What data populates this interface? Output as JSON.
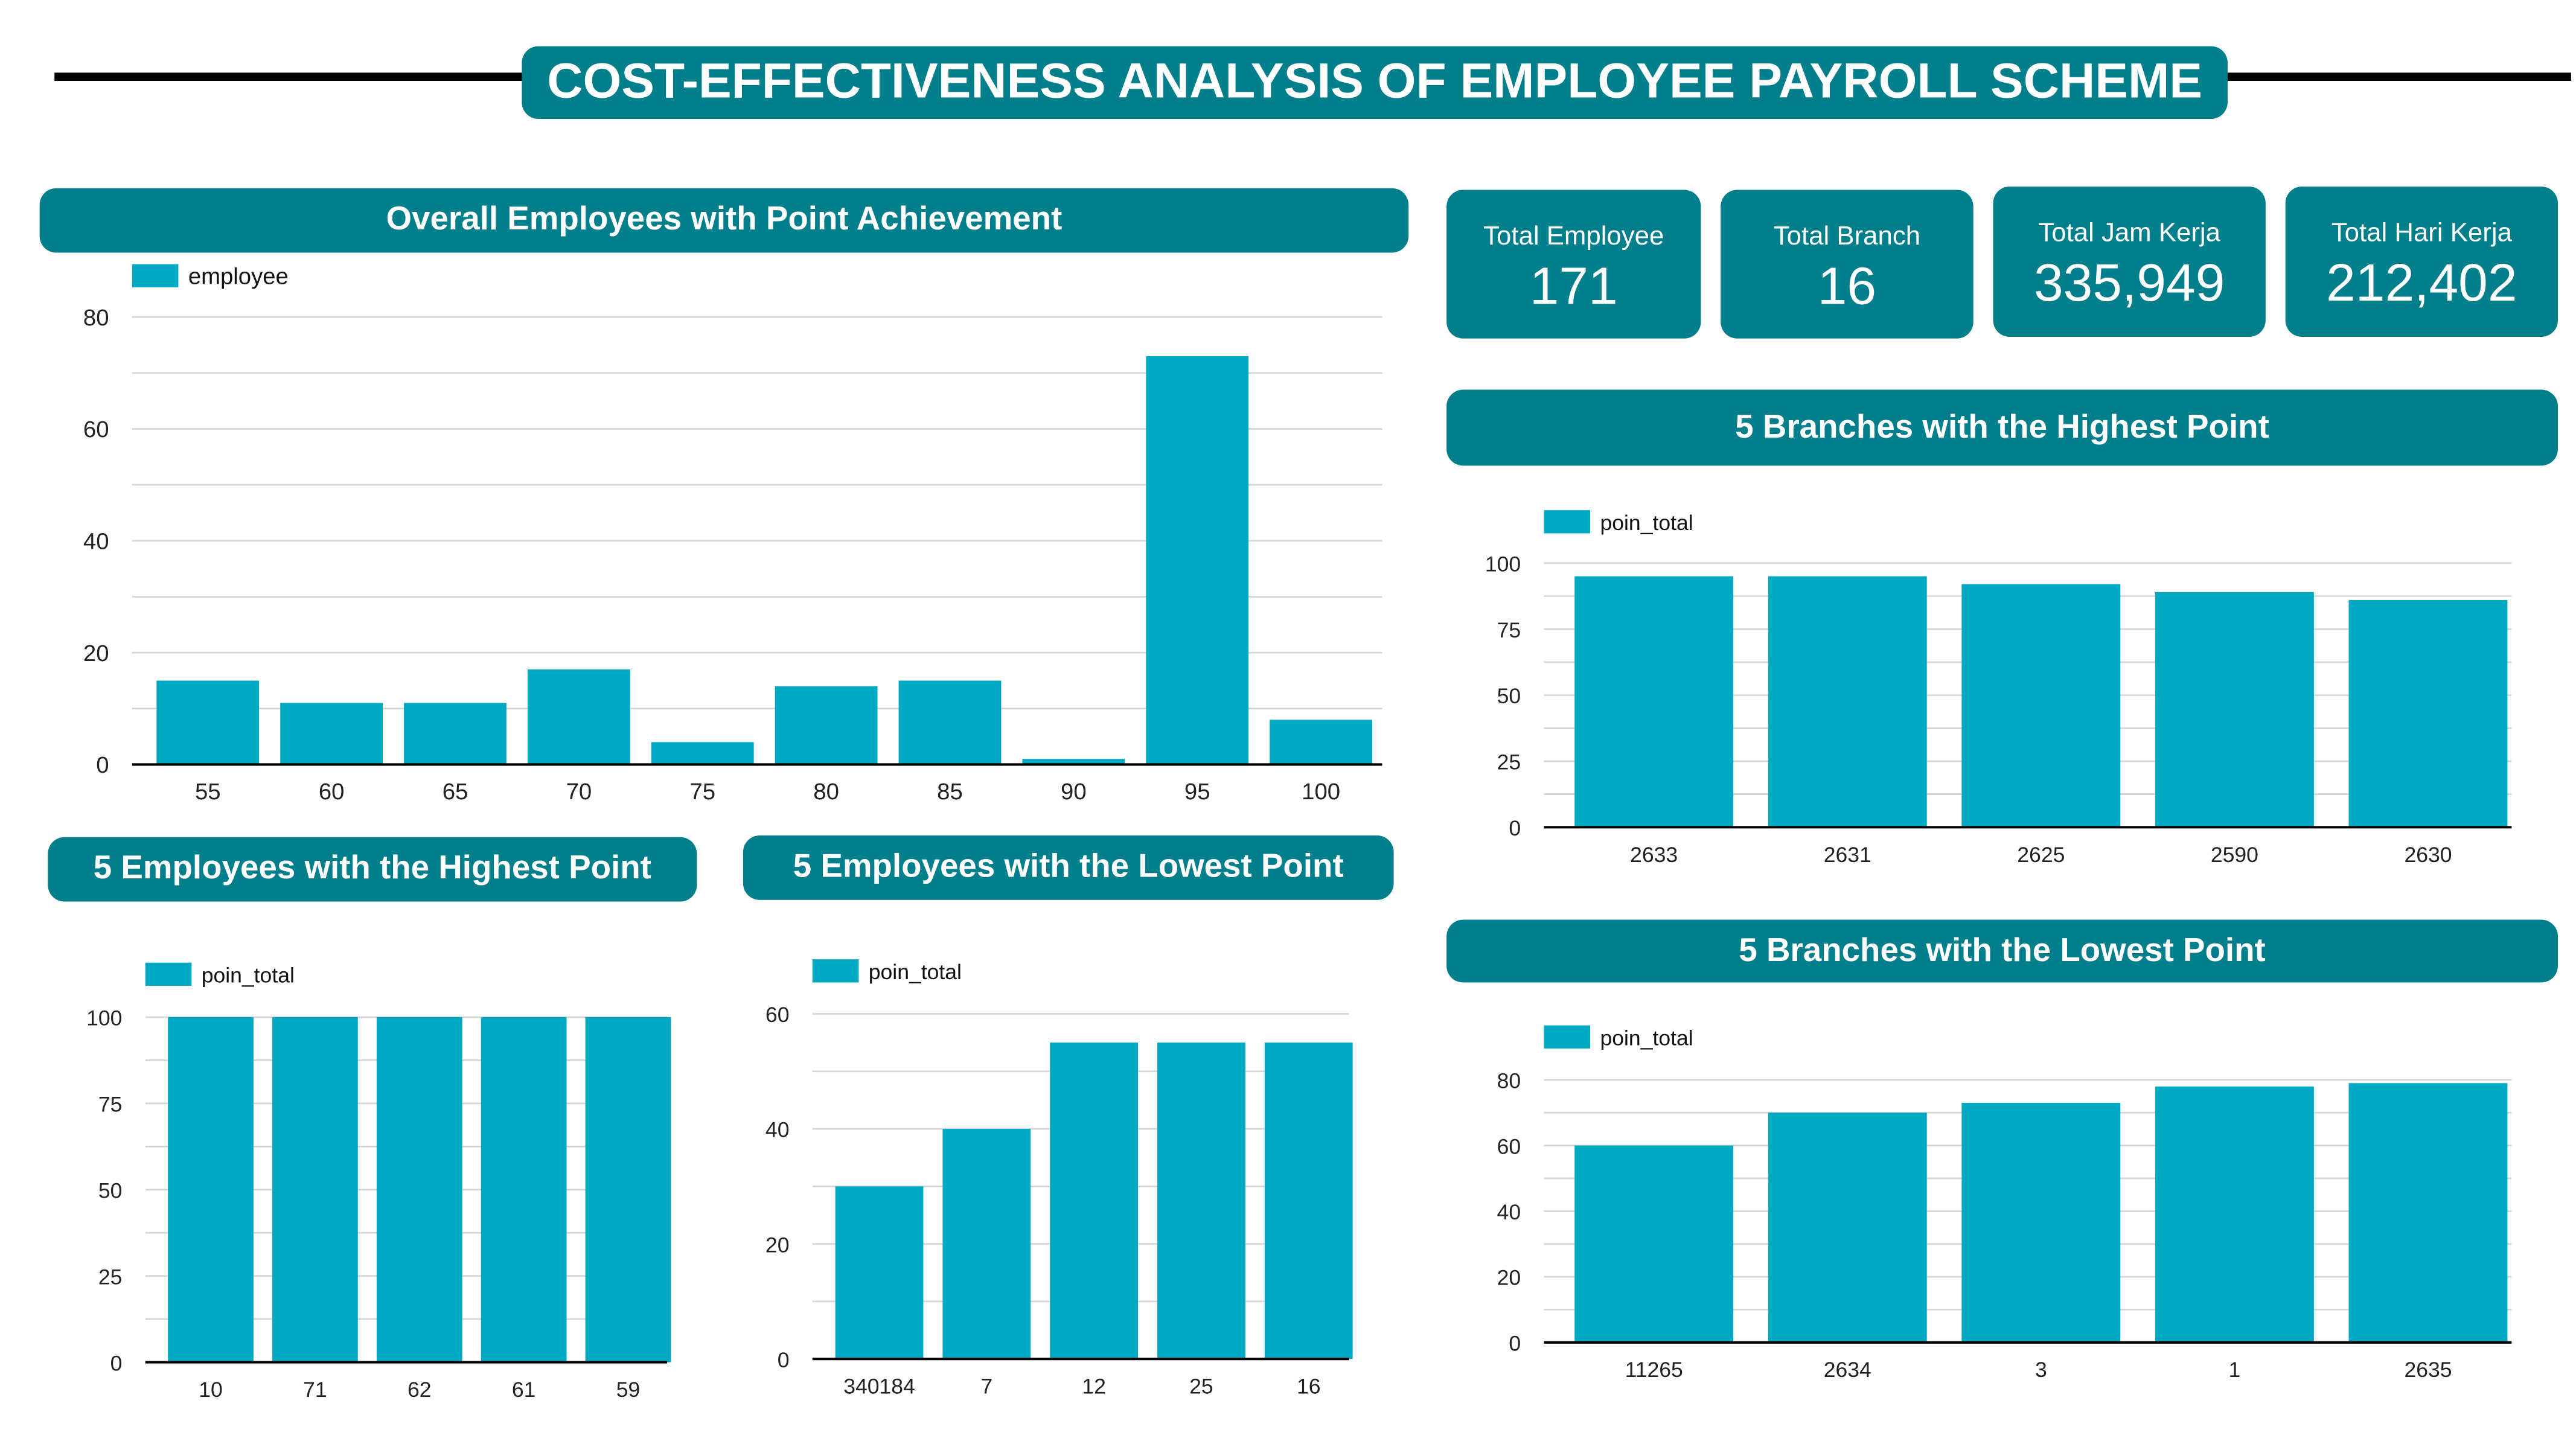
{
  "title": "COST-EFFECTIVENESS ANALYSIS OF EMPLOYEE PAYROLL SCHEME",
  "colors": {
    "header": "#027f8b",
    "bar": "#00a9c2",
    "grid": "#d6d6d6",
    "axis": "#000000"
  },
  "kpis": [
    {
      "label": "Total Employee",
      "value": "171"
    },
    {
      "label": "Total Branch",
      "value": "16"
    },
    {
      "label": "Total Jam Kerja",
      "value": "335,949"
    },
    {
      "label": "Total Hari Kerja",
      "value": "212,402"
    }
  ],
  "chart_data": [
    {
      "id": "overall",
      "type": "bar",
      "title": "Overall Employees with Point Achievement",
      "legend": "employee",
      "categories": [
        "55",
        "60",
        "65",
        "70",
        "75",
        "80",
        "85",
        "90",
        "95",
        "100"
      ],
      "values": [
        15,
        11,
        11,
        17,
        4,
        14,
        15,
        1,
        73,
        8
      ],
      "ylim": [
        0,
        80
      ],
      "yticks": [
        0,
        20,
        40,
        60,
        80
      ],
      "grid": true,
      "legend_position": "top-left"
    },
    {
      "id": "emp_high",
      "type": "bar",
      "title": "5 Employees with the Highest Point",
      "legend": "poin_total",
      "categories": [
        "10",
        "71",
        "62",
        "61",
        "59"
      ],
      "values": [
        100,
        100,
        100,
        100,
        100
      ],
      "ylim": [
        0,
        100
      ],
      "yticks": [
        0,
        25,
        50,
        75,
        100
      ],
      "grid": true,
      "legend_position": "top-left"
    },
    {
      "id": "emp_low",
      "type": "bar",
      "title": "5 Employees with the Lowest Point",
      "legend": "poin_total",
      "categories": [
        "340184",
        "7",
        "12",
        "25",
        "16"
      ],
      "values": [
        30,
        40,
        55,
        55,
        55
      ],
      "ylim": [
        0,
        60
      ],
      "yticks": [
        0,
        20,
        40,
        60
      ],
      "grid": true,
      "legend_position": "top-left"
    },
    {
      "id": "branch_high",
      "type": "bar",
      "title": "5 Branches with the Highest Point",
      "legend": "poin_total",
      "categories": [
        "2633",
        "2631",
        "2625",
        "2590",
        "2630"
      ],
      "values": [
        95,
        95,
        92,
        89,
        86
      ],
      "ylim": [
        0,
        100
      ],
      "yticks": [
        0,
        25,
        50,
        75,
        100
      ],
      "grid": true,
      "legend_position": "top-left"
    },
    {
      "id": "branch_low",
      "type": "bar",
      "title": "5 Branches with the Lowest Point",
      "legend": "poin_total",
      "categories": [
        "11265",
        "2634",
        "3",
        "1",
        "2635"
      ],
      "values": [
        60,
        70,
        73,
        78,
        79
      ],
      "ylim": [
        0,
        80
      ],
      "yticks": [
        0,
        20,
        40,
        60,
        80
      ],
      "grid": true,
      "legend_position": "top-left"
    }
  ]
}
